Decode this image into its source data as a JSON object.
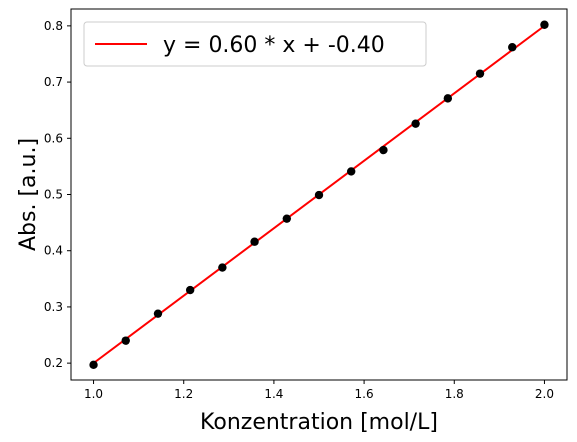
{
  "chart_data": {
    "type": "scatter",
    "xlabel": "Konzentration [mol/L]",
    "ylabel": "Abs. [a.u.]",
    "xlim": [
      0.95,
      2.05
    ],
    "ylim": [
      0.17,
      0.83
    ],
    "xticks": [
      1.0,
      1.2,
      1.4,
      1.6,
      1.8,
      2.0
    ],
    "xtick_labels": [
      "1.0",
      "1.2",
      "1.4",
      "1.6",
      "1.8",
      "2.0"
    ],
    "yticks": [
      0.2,
      0.3,
      0.4,
      0.5,
      0.6,
      0.7,
      0.8
    ],
    "ytick_labels": [
      "0.2",
      "0.3",
      "0.4",
      "0.5",
      "0.6",
      "0.7",
      "0.8"
    ],
    "grid": false,
    "legend_position": "top-left",
    "points": {
      "color": "#000000",
      "x": [
        1.0,
        1.0714,
        1.1429,
        1.2143,
        1.2857,
        1.3571,
        1.4286,
        1.5,
        1.5714,
        1.6429,
        1.7143,
        1.7857,
        1.8571,
        1.9286,
        2.0
      ],
      "y": [
        0.197,
        0.24,
        0.288,
        0.33,
        0.37,
        0.416,
        0.457,
        0.499,
        0.541,
        0.579,
        0.626,
        0.671,
        0.715,
        0.762,
        0.802
      ]
    },
    "fit_line": {
      "name": "y = 0.60 * x + -0.40",
      "color": "#ff0000",
      "slope": 0.6,
      "intercept": -0.4,
      "x_range": [
        1.0,
        2.0
      ]
    }
  }
}
